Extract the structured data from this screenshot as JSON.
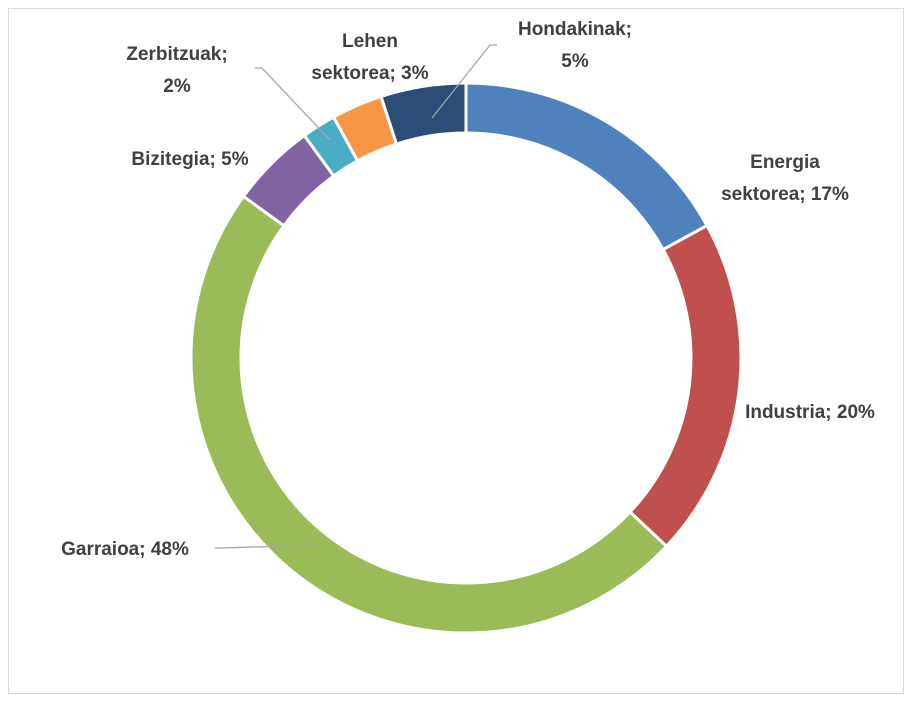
{
  "chart_data": {
    "type": "donut",
    "values": [
      17,
      20,
      48,
      5,
      2,
      3,
      5
    ],
    "value_labels": [
      [
        "Energia",
        "sektorea; 17%"
      ],
      [
        "Industria; 20%"
      ],
      [
        "Garraioa; 48%"
      ],
      [
        "Bizitegia; 5%"
      ],
      [
        "Zerbitzuak;",
        "2%"
      ],
      [
        "Lehen",
        "sektorea; 3%"
      ],
      [
        "Hondakinak;",
        "5%"
      ]
    ],
    "colors": [
      "#4f81bd",
      "#c0504d",
      "#9bbb59",
      "#8064a2",
      "#4bacc6",
      "#f79646",
      "#2c4d75"
    ]
  }
}
